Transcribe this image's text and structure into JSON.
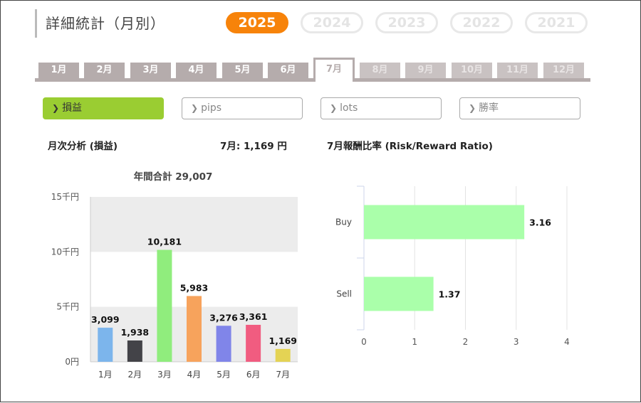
{
  "page": {
    "title": "詳細統計（月別）",
    "years": [
      "2025",
      "2024",
      "2023",
      "2022",
      "2021"
    ],
    "active_year": "2025",
    "months": [
      "1月",
      "2月",
      "3月",
      "4月",
      "5月",
      "6月",
      "7月",
      "8月",
      "9月",
      "10月",
      "11月",
      "12月"
    ],
    "active_month": "7月",
    "metrics": [
      {
        "label": "損益",
        "active": true
      },
      {
        "label": "pips",
        "active": false
      },
      {
        "label": "lots",
        "active": false
      },
      {
        "label": "勝率",
        "active": false
      }
    ],
    "left_heading": "月次分析 (損益)",
    "month_summary": "7月:  1,169 円",
    "right_heading": "7月報酬比率 (Risk/Reward Ratio)",
    "colors": {
      "accent_year": "#f7830a",
      "metric_active": "#9acd32",
      "tab": "#b5acac"
    }
  },
  "chart_data": [
    {
      "type": "bar",
      "title": "年間合計 29,007",
      "categories": [
        "1月",
        "2月",
        "3月",
        "4月",
        "5月",
        "6月",
        "7月"
      ],
      "values": [
        3099,
        1938,
        10181,
        5983,
        3276,
        3361,
        1169
      ],
      "value_labels": [
        "3,099",
        "1,938",
        "10,181",
        "5,983",
        "3,276",
        "3,361",
        "1,169"
      ],
      "colors": [
        "#7cb5ec",
        "#434348",
        "#90ed7d",
        "#f7a35c",
        "#8085e9",
        "#f15c80",
        "#e4d354"
      ],
      "y_ticks": [
        "0円",
        "5千円",
        "10千円",
        "15千円"
      ],
      "ylim": [
        0,
        15000
      ],
      "grid": "alternating bands"
    },
    {
      "type": "bar",
      "orientation": "horizontal",
      "categories": [
        "Buy",
        "Sell"
      ],
      "values": [
        3.16,
        1.37
      ],
      "value_labels": [
        "3.16",
        "1.37"
      ],
      "color": "#aaffaa",
      "x_ticks": [
        "0",
        "1",
        "2",
        "3",
        "4"
      ],
      "xlim": [
        0,
        4
      ],
      "grid": true
    }
  ]
}
